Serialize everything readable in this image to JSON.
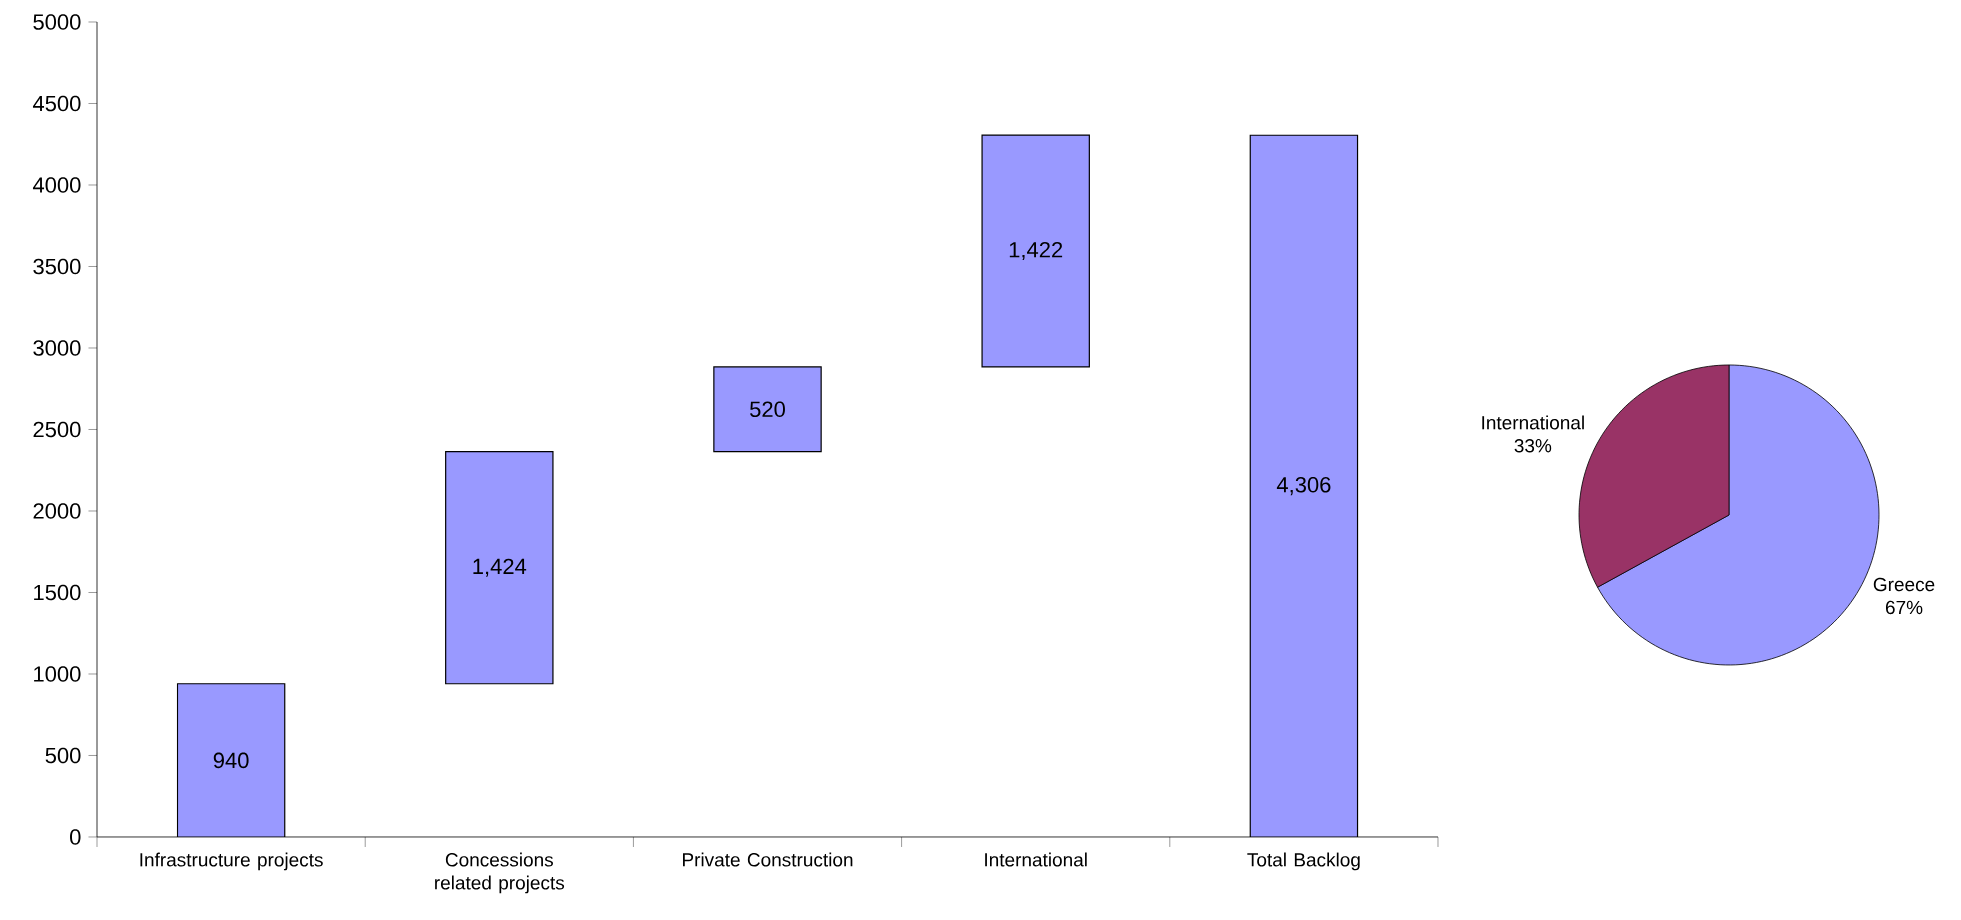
{
  "chart_data": [
    {
      "type": "bar",
      "categories": [
        "Infrastructure projects",
        "Concessions related projects",
        "Private Construction",
        "International",
        "Total Backlog"
      ],
      "values": [
        940,
        1424,
        520,
        1422,
        4306
      ],
      "base": [
        0,
        940,
        2364,
        2884,
        0
      ],
      "color": "#9999ff",
      "value_labels": [
        "940",
        "1,424",
        "520",
        "1,422",
        "4,306"
      ],
      "ylim": [
        0,
        5000
      ],
      "yticks": [
        0,
        500,
        1000,
        1500,
        2000,
        2500,
        3000,
        3500,
        4000,
        4500,
        5000
      ]
    },
    {
      "type": "pie",
      "categories": [
        "Greece",
        "International"
      ],
      "values": [
        67,
        33
      ],
      "colors": [
        "#9999ff",
        "#993366"
      ],
      "value_labels": [
        "67%",
        "33%"
      ]
    }
  ]
}
